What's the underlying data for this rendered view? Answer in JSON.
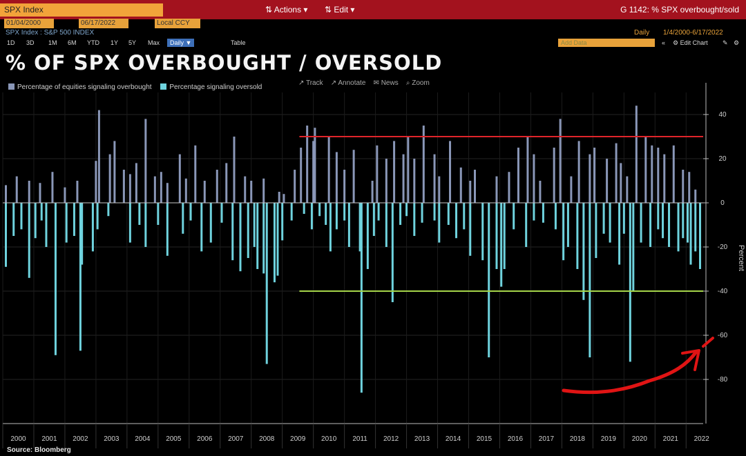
{
  "header": {
    "ticker": "SPX Index",
    "actions": "Actions",
    "edit": "Edit",
    "chart_id": "G 1142: % SPX overbought/sold",
    "start_date": "01/04/2000",
    "end_date": "06/17/2022",
    "currency": "Local CCY",
    "security": "SPX Index : S&P 500 INDEX",
    "frequency": "Daily",
    "range": "1/4/2000-6/17/2022",
    "timeframes": [
      "1D",
      "3D",
      "1M",
      "6M",
      "YTD",
      "1Y",
      "5Y",
      "Max"
    ],
    "active_frequency": "Daily",
    "table": "Table",
    "add_data": "Add Data",
    "edit_chart": "Edit Chart"
  },
  "chart_tools": [
    "Track",
    "Annotate",
    "News",
    "Zoom"
  ],
  "source": "Source: Bloomberg",
  "colors": {
    "overbought": "#8a97b8",
    "oversold": "#6fd3de",
    "upper_line": "#e0242a",
    "lower_line": "#a6d64a",
    "arrow": "#e01414"
  },
  "chart_data": {
    "type": "bar",
    "title": "% OF SPX OVERBOUGHT / OVERSOLD",
    "ylabel": "Percent",
    "ylim": [
      -100,
      50
    ],
    "yticks": [
      40,
      20,
      0,
      -20,
      -40,
      -60,
      -80
    ],
    "xlim": [
      2000,
      2022.55
    ],
    "xticks": [
      "2000",
      "2001",
      "2002",
      "2003",
      "2004",
      "2005",
      "2006",
      "2007",
      "2008",
      "2009",
      "2010",
      "2011",
      "2012",
      "2013",
      "2014",
      "2015",
      "2016",
      "2017",
      "2018",
      "2019",
      "2020",
      "2021",
      "2022"
    ],
    "series": [
      {
        "name": "Percentage of equities signaling overbought",
        "points": [
          [
            2000.1,
            8
          ],
          [
            2000.45,
            12
          ],
          [
            2000.85,
            10
          ],
          [
            2001.2,
            9
          ],
          [
            2001.6,
            14
          ],
          [
            2002.0,
            7
          ],
          [
            2002.4,
            10
          ],
          [
            2003.0,
            19
          ],
          [
            2003.1,
            42
          ],
          [
            2003.45,
            22
          ],
          [
            2003.6,
            28
          ],
          [
            2003.9,
            15
          ],
          [
            2004.1,
            13
          ],
          [
            2004.3,
            18
          ],
          [
            2004.6,
            38
          ],
          [
            2004.9,
            12
          ],
          [
            2005.1,
            14
          ],
          [
            2005.3,
            9
          ],
          [
            2005.7,
            22
          ],
          [
            2005.9,
            11
          ],
          [
            2006.2,
            26
          ],
          [
            2006.5,
            10
          ],
          [
            2006.9,
            15
          ],
          [
            2007.2,
            18
          ],
          [
            2007.45,
            30
          ],
          [
            2007.8,
            12
          ],
          [
            2008.0,
            10
          ],
          [
            2008.4,
            11
          ],
          [
            2008.9,
            5
          ],
          [
            2009.05,
            4
          ],
          [
            2009.4,
            15
          ],
          [
            2009.6,
            25
          ],
          [
            2009.8,
            35
          ],
          [
            2010.0,
            28
          ],
          [
            2010.05,
            34
          ],
          [
            2010.5,
            30
          ],
          [
            2010.75,
            23
          ],
          [
            2011.0,
            15
          ],
          [
            2011.3,
            24
          ],
          [
            2011.9,
            10
          ],
          [
            2012.05,
            26
          ],
          [
            2012.35,
            20
          ],
          [
            2012.6,
            28
          ],
          [
            2012.9,
            22
          ],
          [
            2013.05,
            30
          ],
          [
            2013.25,
            20
          ],
          [
            2013.55,
            35
          ],
          [
            2013.9,
            22
          ],
          [
            2014.05,
            12
          ],
          [
            2014.4,
            28
          ],
          [
            2014.75,
            16
          ],
          [
            2015.05,
            10
          ],
          [
            2015.2,
            15
          ],
          [
            2015.9,
            12
          ],
          [
            2016.3,
            14
          ],
          [
            2016.6,
            25
          ],
          [
            2016.9,
            30
          ],
          [
            2017.1,
            22
          ],
          [
            2017.3,
            10
          ],
          [
            2017.75,
            25
          ],
          [
            2017.95,
            38
          ],
          [
            2018.3,
            12
          ],
          [
            2018.55,
            28
          ],
          [
            2018.9,
            22
          ],
          [
            2019.05,
            25
          ],
          [
            2019.45,
            20
          ],
          [
            2019.75,
            27
          ],
          [
            2019.9,
            18
          ],
          [
            2020.1,
            12
          ],
          [
            2020.4,
            44
          ],
          [
            2020.7,
            30
          ],
          [
            2020.9,
            26
          ],
          [
            2021.1,
            25
          ],
          [
            2021.3,
            22
          ],
          [
            2021.6,
            26
          ],
          [
            2021.9,
            15
          ],
          [
            2022.1,
            14
          ],
          [
            2022.3,
            6
          ]
        ]
      },
      {
        "name": "Percentage signaling oversold",
        "points": [
          [
            2000.1,
            -29
          ],
          [
            2000.35,
            -15
          ],
          [
            2000.6,
            -12
          ],
          [
            2000.85,
            -34
          ],
          [
            2001.05,
            -16
          ],
          [
            2001.25,
            -8
          ],
          [
            2001.4,
            -20
          ],
          [
            2001.7,
            -69
          ],
          [
            2002.05,
            -18
          ],
          [
            2002.3,
            -15
          ],
          [
            2002.5,
            -67
          ],
          [
            2002.55,
            -28
          ],
          [
            2002.9,
            -22
          ],
          [
            2003.05,
            -12
          ],
          [
            2003.4,
            -6
          ],
          [
            2004.1,
            -18
          ],
          [
            2004.4,
            -10
          ],
          [
            2004.6,
            -20
          ],
          [
            2005.0,
            -10
          ],
          [
            2005.3,
            -24
          ],
          [
            2005.8,
            -14
          ],
          [
            2006.05,
            -8
          ],
          [
            2006.4,
            -22
          ],
          [
            2006.7,
            -18
          ],
          [
            2007.05,
            -9
          ],
          [
            2007.4,
            -26
          ],
          [
            2007.65,
            -31
          ],
          [
            2007.9,
            -25
          ],
          [
            2008.1,
            -20
          ],
          [
            2008.2,
            -30
          ],
          [
            2008.4,
            -32
          ],
          [
            2008.5,
            -73
          ],
          [
            2008.75,
            -36
          ],
          [
            2008.85,
            -33
          ],
          [
            2009.0,
            -17
          ],
          [
            2009.3,
            -8
          ],
          [
            2009.7,
            -5
          ],
          [
            2009.95,
            -12
          ],
          [
            2010.2,
            -6
          ],
          [
            2010.4,
            -10
          ],
          [
            2010.55,
            -22
          ],
          [
            2010.75,
            -12
          ],
          [
            2011.0,
            -8
          ],
          [
            2011.15,
            -20
          ],
          [
            2011.5,
            -22
          ],
          [
            2011.55,
            -86
          ],
          [
            2011.75,
            -30
          ],
          [
            2011.95,
            -15
          ],
          [
            2012.1,
            -8
          ],
          [
            2012.35,
            -20
          ],
          [
            2012.55,
            -45
          ],
          [
            2012.8,
            -10
          ],
          [
            2013.0,
            -6
          ],
          [
            2013.25,
            -15
          ],
          [
            2013.5,
            -9
          ],
          [
            2013.9,
            -8
          ],
          [
            2014.05,
            -18
          ],
          [
            2014.35,
            -10
          ],
          [
            2014.6,
            -16
          ],
          [
            2014.85,
            -12
          ],
          [
            2015.05,
            -24
          ],
          [
            2015.45,
            -26
          ],
          [
            2015.65,
            -70
          ],
          [
            2015.9,
            -30
          ],
          [
            2016.05,
            -38
          ],
          [
            2016.15,
            -30
          ],
          [
            2016.45,
            -12
          ],
          [
            2016.85,
            -20
          ],
          [
            2017.1,
            -8
          ],
          [
            2017.4,
            -9
          ],
          [
            2017.8,
            -12
          ],
          [
            2018.05,
            -26
          ],
          [
            2018.2,
            -20
          ],
          [
            2018.5,
            -30
          ],
          [
            2018.7,
            -44
          ],
          [
            2018.9,
            -70
          ],
          [
            2019.1,
            -25
          ],
          [
            2019.35,
            -14
          ],
          [
            2019.55,
            -18
          ],
          [
            2019.85,
            -28
          ],
          [
            2020.0,
            -14
          ],
          [
            2020.2,
            -72
          ],
          [
            2020.3,
            -40
          ],
          [
            2020.55,
            -18
          ],
          [
            2020.85,
            -20
          ],
          [
            2021.1,
            -12
          ],
          [
            2021.25,
            -16
          ],
          [
            2021.45,
            -20
          ],
          [
            2021.75,
            -22
          ],
          [
            2021.9,
            -16
          ],
          [
            2022.05,
            -18
          ],
          [
            2022.15,
            -28
          ],
          [
            2022.3,
            -22
          ],
          [
            2022.45,
            -30
          ]
        ]
      }
    ],
    "hlines": [
      {
        "y": 30,
        "from": 2009.55,
        "to": 2022.55,
        "color": "#e0242a"
      },
      {
        "y": -40,
        "from": 2009.55,
        "to": 2022.55,
        "color": "#a6d64a"
      }
    ]
  }
}
